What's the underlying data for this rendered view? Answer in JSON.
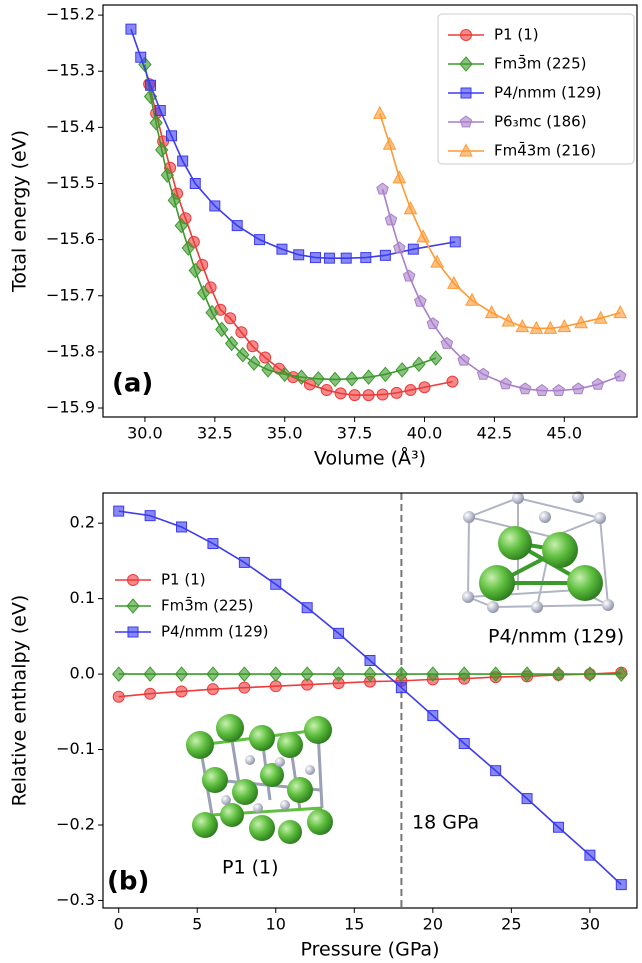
{
  "chart_data": [
    {
      "type": "line",
      "x_label": "Volume (Å³)",
      "y_label": "Total energy (eV)",
      "xlim": [
        28.5,
        47.6
      ],
      "ylim": [
        -15.916,
        -15.182
      ],
      "xticks": [
        {
          "value": 30,
          "label": "30.0"
        },
        {
          "value": 32.5,
          "label": "32.5"
        },
        {
          "value": 35,
          "label": "35.0"
        },
        {
          "value": 37.5,
          "label": "37.5"
        },
        {
          "value": 40,
          "label": "40.0"
        },
        {
          "value": 42.5,
          "label": "42.5"
        },
        {
          "value": 45,
          "label": "45.0"
        }
      ],
      "yticks": [
        {
          "value": -15.2,
          "label": "−15.2"
        },
        {
          "value": -15.3,
          "label": "−15.3"
        },
        {
          "value": -15.4,
          "label": "−15.4"
        },
        {
          "value": -15.5,
          "label": "−15.5"
        },
        {
          "value": -15.6,
          "label": "−15.6"
        },
        {
          "value": -15.7,
          "label": "−15.7"
        },
        {
          "value": -15.8,
          "label": "−15.8"
        },
        {
          "value": -15.9,
          "label": "−15.9"
        }
      ],
      "legend": "upper right",
      "annotations": [
        "(a)"
      ],
      "series": [
        {
          "name": "P1 (1)",
          "color": "#ee3b3b",
          "marker": "circle",
          "x": [
            30.15,
            30.4,
            30.65,
            30.9,
            31.15,
            31.45,
            31.75,
            32.05,
            32.35,
            32.7,
            33.05,
            33.45,
            33.85,
            34.3,
            34.8,
            35.3,
            35.9,
            36.5,
            37.0,
            37.5,
            38.0,
            38.5,
            39.0,
            39.5,
            40.0,
            41.0
          ],
          "values": [
            -15.323,
            -15.375,
            -15.425,
            -15.472,
            -15.518,
            -15.562,
            -15.604,
            -15.645,
            -15.685,
            -15.725,
            -15.74,
            -15.765,
            -15.79,
            -15.81,
            -15.83,
            -15.845,
            -15.858,
            -15.868,
            -15.874,
            -15.877,
            -15.877,
            -15.876,
            -15.873,
            -15.868,
            -15.863,
            -15.853
          ]
        },
        {
          "name": "Fm3̄m (225)",
          "color": "#3a9a2a",
          "marker": "diamond",
          "x": [
            30.0,
            30.2,
            30.4,
            30.6,
            30.8,
            31.05,
            31.3,
            31.55,
            31.8,
            32.1,
            32.4,
            32.75,
            33.1,
            33.5,
            33.9,
            34.4,
            35.0,
            35.6,
            36.2,
            36.8,
            37.4,
            38.0,
            38.6,
            39.2,
            39.8,
            40.4
          ],
          "values": [
            -15.288,
            -15.345,
            -15.392,
            -15.44,
            -15.485,
            -15.53,
            -15.575,
            -15.615,
            -15.655,
            -15.695,
            -15.73,
            -15.76,
            -15.785,
            -15.805,
            -15.82,
            -15.832,
            -15.84,
            -15.845,
            -15.848,
            -15.849,
            -15.848,
            -15.845,
            -15.84,
            -15.832,
            -15.822,
            -15.811
          ]
        },
        {
          "name": "P4/nmm (129)",
          "color": "#3b3bf0",
          "marker": "square",
          "x": [
            29.5,
            29.85,
            30.2,
            30.55,
            30.95,
            31.35,
            31.8,
            32.5,
            33.3,
            34.1,
            34.9,
            35.5,
            36.1,
            36.6,
            37.2,
            37.9,
            38.6,
            39.6,
            41.1
          ],
          "values": [
            -15.225,
            -15.275,
            -15.325,
            -15.37,
            -15.415,
            -15.46,
            -15.5,
            -15.54,
            -15.575,
            -15.6,
            -15.617,
            -15.627,
            -15.632,
            -15.633,
            -15.633,
            -15.632,
            -15.628,
            -15.617,
            -15.604
          ]
        },
        {
          "name": "P6₃mc (186)",
          "color": "#a87fc8",
          "marker": "pentagon",
          "x": [
            38.5,
            38.8,
            39.1,
            39.45,
            39.85,
            40.3,
            40.8,
            41.4,
            42.1,
            42.9,
            43.6,
            44.2,
            44.8,
            45.5,
            46.2,
            47.0
          ],
          "values": [
            -15.51,
            -15.565,
            -15.615,
            -15.665,
            -15.71,
            -15.75,
            -15.785,
            -15.815,
            -15.84,
            -15.857,
            -15.866,
            -15.869,
            -15.869,
            -15.866,
            -15.858,
            -15.843
          ]
        },
        {
          "name": "Fm4̄3m (216)",
          "color": "#ff9933",
          "marker": "triangle",
          "x": [
            38.4,
            38.75,
            39.1,
            39.5,
            39.95,
            40.45,
            41.05,
            41.7,
            42.4,
            43.0,
            43.5,
            44.0,
            44.5,
            45.0,
            45.6,
            46.3,
            47.0
          ],
          "values": [
            -15.375,
            -15.43,
            -15.49,
            -15.545,
            -15.595,
            -15.64,
            -15.678,
            -15.708,
            -15.73,
            -15.745,
            -15.755,
            -15.758,
            -15.758,
            -15.755,
            -15.748,
            -15.74,
            -15.73
          ]
        }
      ]
    },
    {
      "type": "line",
      "x_label": "Pressure (GPa)",
      "y_label": "Relative enthalpy (eV)",
      "xlim": [
        -1,
        33
      ],
      "ylim": [
        -0.31,
        0.24
      ],
      "xticks": [
        0,
        5,
        10,
        15,
        20,
        25,
        30
      ],
      "yticks": [
        0.2,
        0.1,
        {
          "value": 0,
          "label": "0.0"
        },
        {
          "value": -0.1,
          "label": "−0.1"
        },
        {
          "value": -0.2,
          "label": "−0.2"
        },
        {
          "value": -0.3,
          "label": "−0.3"
        }
      ],
      "legend": "center left",
      "vline": 18,
      "annotations": [
        "(b)",
        "18 GPa",
        "P1 (1)",
        "P4/nmm (129)"
      ],
      "series": [
        {
          "name": "P1 (1)",
          "color": "#ee3b3b",
          "marker": "circle",
          "x": [
            0,
            2,
            4,
            6,
            8,
            10,
            12,
            14,
            16,
            18,
            20,
            22,
            24,
            26,
            28,
            30,
            32
          ],
          "values": [
            -0.03,
            -0.026,
            -0.023,
            -0.02,
            -0.018,
            -0.016,
            -0.014,
            -0.012,
            -0.01,
            -0.009,
            -0.007,
            -0.006,
            -0.004,
            -0.003,
            -0.001,
            0,
            0.002
          ]
        },
        {
          "name": "Fm3̄m (225)",
          "color": "#3a9a2a",
          "marker": "diamond",
          "x": [
            0,
            2,
            4,
            6,
            8,
            10,
            12,
            14,
            16,
            18,
            20,
            22,
            24,
            26,
            28,
            30,
            32
          ],
          "values": [
            0,
            0,
            0,
            0,
            0,
            0,
            0,
            0,
            0,
            0,
            0,
            0,
            0,
            0,
            0,
            0,
            0
          ]
        },
        {
          "name": "P4/nmm (129)",
          "color": "#3b3bf0",
          "marker": "square",
          "x": [
            0,
            2,
            4,
            6,
            8,
            10,
            12,
            14,
            16,
            18,
            20,
            22,
            24,
            26,
            28,
            30,
            32
          ],
          "values": [
            0.216,
            0.21,
            0.195,
            0.173,
            0.148,
            0.119,
            0.088,
            0.054,
            0.018,
            -0.018,
            -0.055,
            -0.092,
            -0.128,
            -0.165,
            -0.203,
            -0.24,
            -0.279
          ]
        }
      ]
    }
  ]
}
